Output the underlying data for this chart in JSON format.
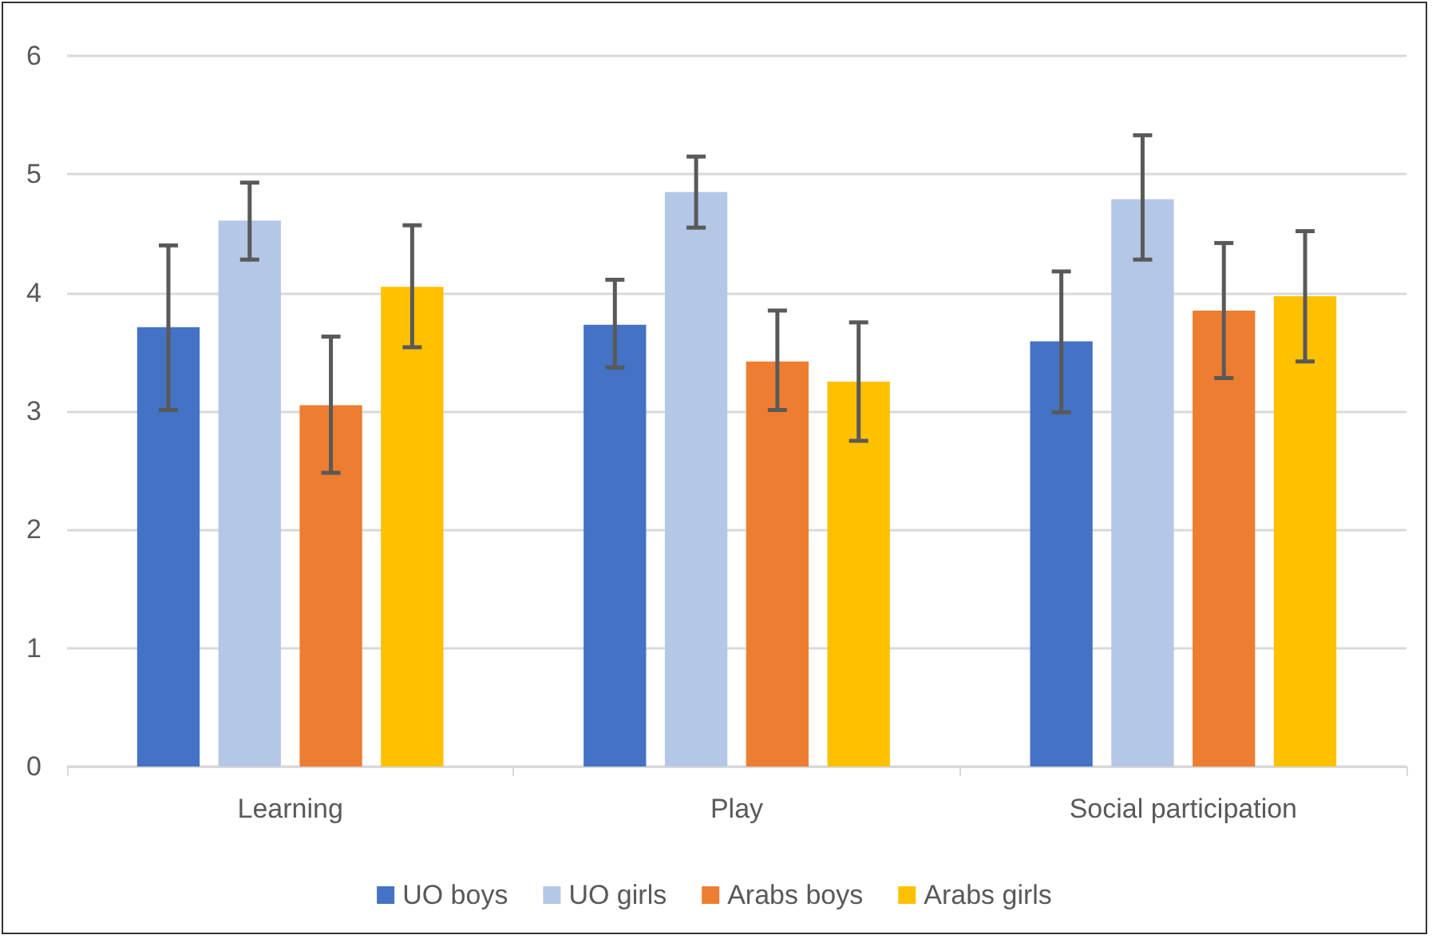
{
  "chart_data": {
    "type": "bar",
    "categories": [
      "Learning",
      "Play",
      "Social participation"
    ],
    "series": [
      {
        "name": "UO boys",
        "color": "#4472c4",
        "values": [
          3.71,
          3.73,
          3.59
        ],
        "errors": [
          [
            3.01,
            4.4
          ],
          [
            3.37,
            4.11
          ],
          [
            2.99,
            4.18
          ]
        ]
      },
      {
        "name": "UO girls",
        "color": "#b4c7e7",
        "values": [
          4.61,
          4.85,
          4.79
        ],
        "errors": [
          [
            4.28,
            4.93
          ],
          [
            4.55,
            5.15
          ],
          [
            4.28,
            5.33
          ]
        ]
      },
      {
        "name": "Arabs boys",
        "color": "#ed7d31",
        "values": [
          3.05,
          3.42,
          3.85
        ],
        "errors": [
          [
            2.48,
            3.63
          ],
          [
            3.01,
            3.85
          ],
          [
            3.28,
            4.42
          ]
        ]
      },
      {
        "name": "Arabs girls",
        "color": "#ffc000",
        "values": [
          4.05,
          3.25,
          3.97
        ],
        "errors": [
          [
            3.54,
            4.57
          ],
          [
            2.75,
            3.75
          ],
          [
            3.42,
            4.52
          ]
        ]
      }
    ],
    "ylim": [
      0,
      6
    ],
    "yticks": [
      0,
      1,
      2,
      3,
      4,
      5,
      6
    ],
    "grid": "y",
    "legend": "bottom"
  }
}
